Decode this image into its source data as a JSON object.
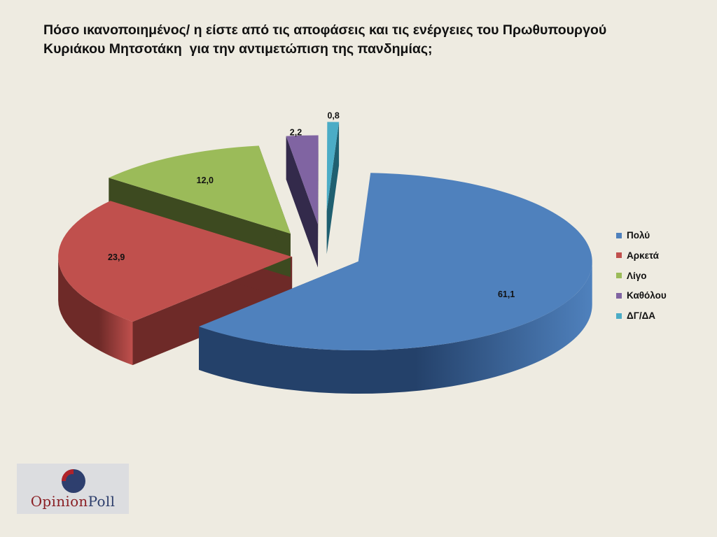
{
  "title": {
    "line1": "Πόσο ικανοποιημένος/ η είστε από τις αποφάσεις και τις ενέργειες του Πρωθυπουργού",
    "line2": "Κυριάκου Μητσοτάκη  για την αντιμετώπιση της πανδημίας;"
  },
  "chart_data": {
    "type": "pie",
    "style": "3d-exploded",
    "categories": [
      "Πολύ",
      "Αρκετά",
      "Λίγο",
      "Καθόλου",
      "ΔΓ/ΔΑ"
    ],
    "values": [
      61.1,
      23.9,
      12.0,
      2.2,
      0.8
    ],
    "value_labels": [
      "61,1",
      "23,9",
      "12,0",
      "2,2",
      "0,8"
    ],
    "colors": [
      "#4f81bd",
      "#c0504d",
      "#9bbb59",
      "#8064a2",
      "#4bacc6"
    ],
    "side_colors": [
      "#24416a",
      "#6e2a28",
      "#3d4a20",
      "#332a4b",
      "#1f5f70"
    ],
    "legend_position": "right"
  },
  "logo": {
    "text_part1": "Opinion",
    "text_part2": "Poll",
    "colors": [
      "#b0232a",
      "#2e3f6e"
    ]
  }
}
